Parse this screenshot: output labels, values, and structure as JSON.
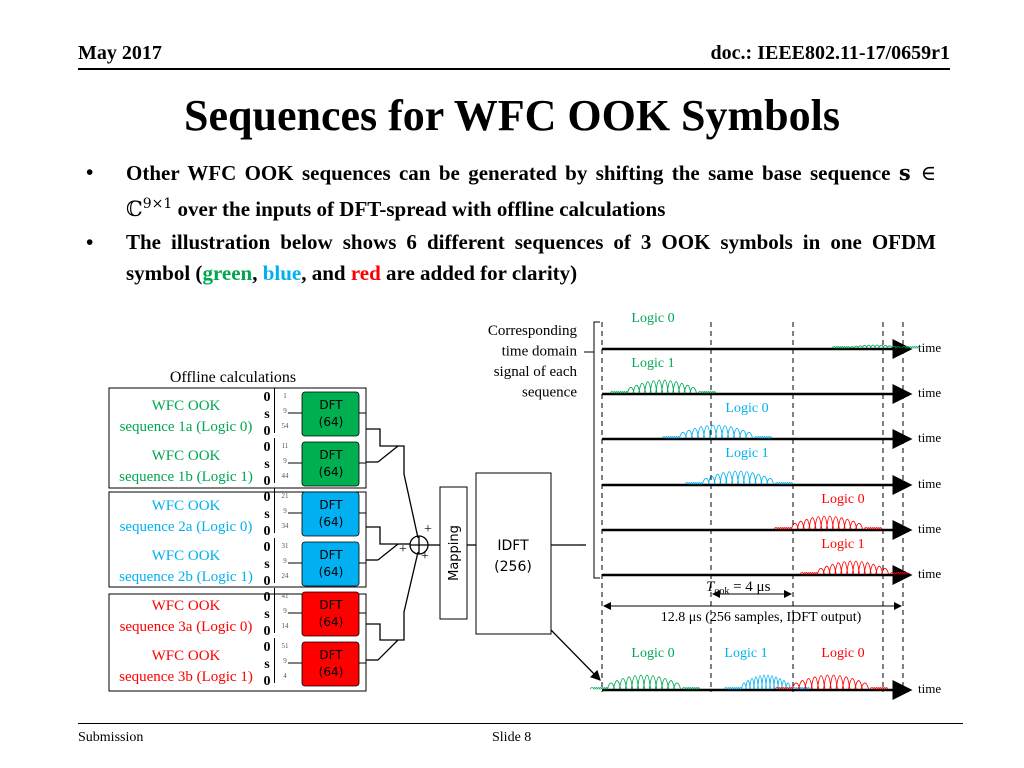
{
  "header": {
    "date": "May 2017",
    "doc": "doc.: IEEE802.11-17/0659r1"
  },
  "title": "Sequences for WFC OOK Symbols",
  "bullets": [
    {
      "text_a": "Other WFC OOK sequences can be generated by shifting the same base sequence ",
      "math_s": "s",
      "math_in": " ∈ ℂ",
      "math_sup": "9×1",
      "text_b": " over the inputs of DFT-spread with offline calculations"
    },
    {
      "text_a": "The illustration below shows 6 different sequences of 3 OOK symbols in one OFDM symbol (",
      "green": "green",
      "sep1": ", ",
      "blue": "blue",
      "sep2": ", and ",
      "red": "red",
      "text_b": " are added for clarity)"
    }
  ],
  "colors": {
    "green": "#00a651",
    "blue": "#00b0f0",
    "red": "#ff0000",
    "dft_green": "#00b050",
    "dft_blue": "#00b0f0",
    "dft_red": "#ff0000"
  },
  "diagram": {
    "offline_label": "Offline calculations",
    "sequences": [
      {
        "line1": "WFC OOK",
        "line2": "sequence 1a (Logic 0)",
        "color": "green",
        "idx": [
          "1",
          "9",
          "54"
        ]
      },
      {
        "line1": "WFC OOK",
        "line2": "sequence 1b (Logic 1)",
        "color": "green",
        "idx": [
          "11",
          "9",
          "44"
        ]
      },
      {
        "line1": "WFC OOK",
        "line2": "sequence 2a (Logic 0)",
        "color": "blue",
        "idx": [
          "21",
          "9",
          "34"
        ]
      },
      {
        "line1": "WFC OOK",
        "line2": "sequence 2b (Logic 1)",
        "color": "blue",
        "idx": [
          "31",
          "9",
          "24"
        ]
      },
      {
        "line1": "WFC OOK",
        "line2": "sequence 3a (Logic 0)",
        "color": "red",
        "idx": [
          "41",
          "9",
          "14"
        ]
      },
      {
        "line1": "WFC OOK",
        "line2": "sequence 3b (Logic 1)",
        "color": "red",
        "idx": [
          "51",
          "9",
          "4"
        ]
      }
    ],
    "vec": [
      "0",
      "s",
      "0"
    ],
    "dft_line1": "DFT",
    "dft_line2": "(64)",
    "mapping": "Mapping",
    "idft_line1": "IDFT",
    "idft_line2": "(256)",
    "plus": "+",
    "corr_label": [
      "Corresponding",
      "time domain",
      "signal of each",
      "sequence"
    ],
    "time_label": "time",
    "signal_labels": [
      {
        "text": "Logic 0",
        "color": "green"
      },
      {
        "text": "Logic 1",
        "color": "green"
      },
      {
        "text": "Logic 0",
        "color": "blue"
      },
      {
        "text": "Logic 1",
        "color": "blue"
      },
      {
        "text": "Logic 0",
        "color": "red"
      },
      {
        "text": "Logic 1",
        "color": "red"
      }
    ],
    "t_ook": "T",
    "t_ook_sub": "ook",
    "t_ook_val": " = 4 μs",
    "duration_label": "12.8 μs (256 samples, IDFT output)",
    "combined_labels": [
      {
        "text": "Logic 0",
        "color": "green"
      },
      {
        "text": "Logic 1",
        "color": "blue"
      },
      {
        "text": "Logic 0",
        "color": "red"
      }
    ]
  },
  "footer": {
    "left": "Submission",
    "center": "Slide 8"
  }
}
